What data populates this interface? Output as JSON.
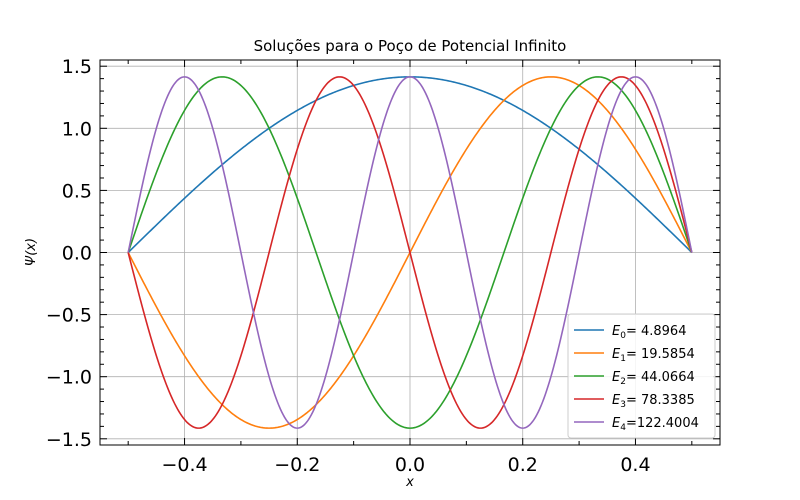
{
  "chart_data": {
    "type": "line",
    "title": "Soluções para o Poço de Potencial Infinito",
    "xlabel": "x",
    "ylabel": "Ψ(x)",
    "xlim": [
      -0.55,
      0.55
    ],
    "ylim": [
      -1.55,
      1.55
    ],
    "x_ticks": [
      -0.4,
      -0.2,
      0.0,
      0.2,
      0.4
    ],
    "x_tick_labels": [
      "−0.4",
      "−0.2",
      "0.0",
      "0.2",
      "0.4"
    ],
    "y_ticks": [
      -1.5,
      -1.0,
      -0.5,
      0.0,
      0.5,
      1.0,
      1.5
    ],
    "y_tick_labels": [
      "−1.5",
      "−1.0",
      "−0.5",
      "0.0",
      "0.5",
      "1.0",
      "1.5"
    ],
    "grid": true,
    "legend_position": "lower-right",
    "domain": [
      -0.5,
      0.5
    ],
    "amplitude": 1.4142,
    "series": [
      {
        "name": "E0",
        "label_sub": "0",
        "energy_text": "=  4.8964",
        "n": 1,
        "color": "#1f77b4"
      },
      {
        "name": "E1",
        "label_sub": "1",
        "energy_text": "= 19.5854",
        "n": 2,
        "color": "#ff7f0e"
      },
      {
        "name": "E2",
        "label_sub": "2",
        "energy_text": "= 44.0664",
        "n": 3,
        "color": "#2ca02c"
      },
      {
        "name": "E3",
        "label_sub": "3",
        "energy_text": "= 78.3385",
        "n": 4,
        "color": "#d62728"
      },
      {
        "name": "E4",
        "label_sub": "4",
        "energy_text": "=122.4004",
        "n": 5,
        "color": "#9467bd"
      }
    ]
  }
}
